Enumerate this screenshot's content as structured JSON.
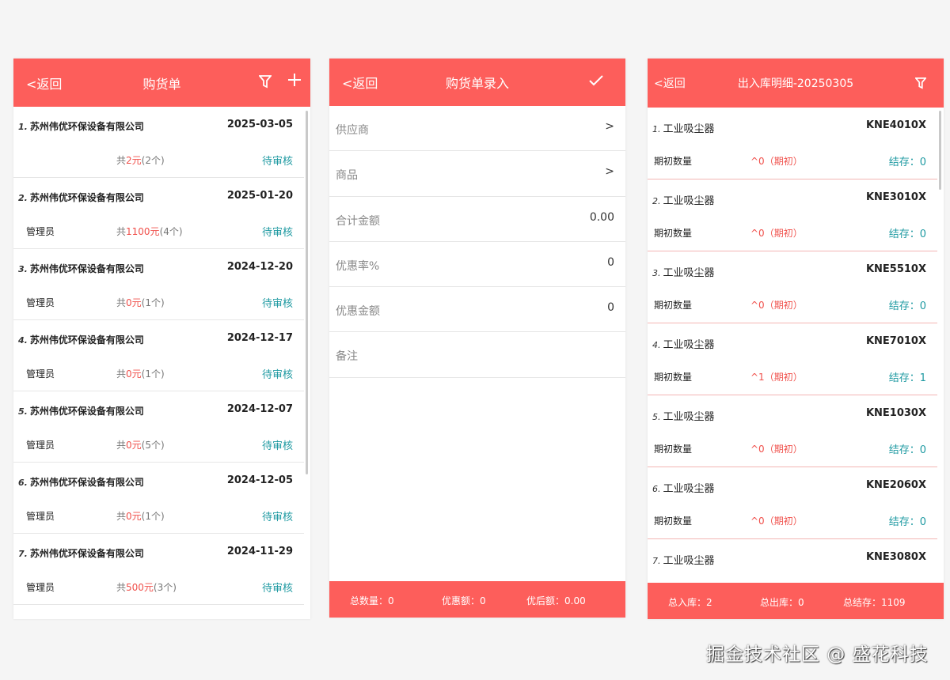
{
  "colors": {
    "accent": "#fd5e5b",
    "status": "#1f9aa2",
    "amount": "#f0504b"
  },
  "purchase_list": {
    "back": "<返回",
    "title": "购货单",
    "filter_icon": "filter-icon",
    "add_icon": "plus-icon",
    "items": [
      {
        "num": "1.",
        "supplier": "苏州伟优环保设备有限公司",
        "date": "2025-03-05",
        "operator": "",
        "prefix": "共",
        "amount": "2元",
        "count": "(2个)",
        "status": "待审核"
      },
      {
        "num": "2.",
        "supplier": "苏州伟优环保设备有限公司",
        "date": "2025-01-20",
        "operator": "管理员",
        "prefix": "共",
        "amount": "1100元",
        "count": "(4个)",
        "status": "待审核"
      },
      {
        "num": "3.",
        "supplier": "苏州伟优环保设备有限公司",
        "date": "2024-12-20",
        "operator": "管理员",
        "prefix": "共",
        "amount": "0元",
        "count": "(1个)",
        "status": "待审核"
      },
      {
        "num": "4.",
        "supplier": "苏州伟优环保设备有限公司",
        "date": "2024-12-17",
        "operator": "管理员",
        "prefix": "共",
        "amount": "0元",
        "count": "(1个)",
        "status": "待审核"
      },
      {
        "num": "5.",
        "supplier": "苏州伟优环保设备有限公司",
        "date": "2024-12-07",
        "operator": "管理员",
        "prefix": "共",
        "amount": "0元",
        "count": "(5个)",
        "status": "待审核"
      },
      {
        "num": "6.",
        "supplier": "苏州伟优环保设备有限公司",
        "date": "2024-12-05",
        "operator": "管理员",
        "prefix": "共",
        "amount": "0元",
        "count": "(1个)",
        "status": "待审核"
      },
      {
        "num": "7.",
        "supplier": "苏州伟优环保设备有限公司",
        "date": "2024-11-29",
        "operator": "管理员",
        "prefix": "共",
        "amount": "500元",
        "count": "(3个)",
        "status": "待审核"
      }
    ]
  },
  "purchase_entry": {
    "back": "<返回",
    "title": "购货单录入",
    "confirm_icon": "check-icon",
    "fields": [
      {
        "label": "供应商",
        "value": ">"
      },
      {
        "label": "商品",
        "value": ">"
      },
      {
        "label": "合计金额",
        "value": "0.00"
      },
      {
        "label": "优惠率%",
        "value": "0"
      },
      {
        "label": "优惠金额",
        "value": "0"
      },
      {
        "label": "备注",
        "value": ""
      }
    ],
    "footer": {
      "total_qty": "总数量：0",
      "discount": "优惠额：0",
      "after_discount": "优后额：0.00"
    }
  },
  "stock_detail": {
    "back": "<返回",
    "title": "出入库明细-20250305",
    "filter_icon": "filter-icon",
    "items": [
      {
        "num": "1.",
        "name": "工业吸尘器",
        "code": "KNE4010X",
        "label": "期初数量",
        "qty": "^0（期初）",
        "stock": "结存：0"
      },
      {
        "num": "2.",
        "name": "工业吸尘器",
        "code": "KNE3010X",
        "label": "期初数量",
        "qty": "^0（期初）",
        "stock": "结存：0"
      },
      {
        "num": "3.",
        "name": "工业吸尘器",
        "code": "KNE5510X",
        "label": "期初数量",
        "qty": "^0（期初）",
        "stock": "结存：0"
      },
      {
        "num": "4.",
        "name": "工业吸尘器",
        "code": "KNE7010X",
        "label": "期初数量",
        "qty": "^1（期初）",
        "stock": "结存：1"
      },
      {
        "num": "5.",
        "name": "工业吸尘器",
        "code": "KNE1030X",
        "label": "期初数量",
        "qty": "^0（期初）",
        "stock": "结存：0"
      },
      {
        "num": "6.",
        "name": "工业吸尘器",
        "code": "KNE2060X",
        "label": "期初数量",
        "qty": "^0（期初）",
        "stock": "结存：0"
      },
      {
        "num": "7.",
        "name": "工业吸尘器",
        "code": "KNE3080X",
        "label": "",
        "qty": "",
        "stock": ""
      }
    ],
    "footer": {
      "total_in": "总入库：2",
      "total_out": "总出库：0",
      "total_stock": "总结存：1109"
    }
  },
  "watermark": "掘金技术社区 @ 盛花科技"
}
